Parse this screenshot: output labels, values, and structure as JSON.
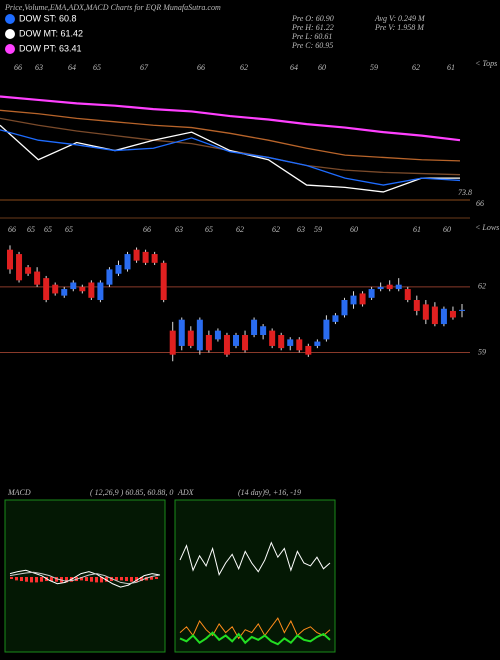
{
  "header": {
    "title": "Price,Volume,EMA,ADX,MACD Charts for EQR MunafaSutra.com"
  },
  "legend": [
    {
      "text": "DOW ST: 60.8",
      "color": "#1e6cff"
    },
    {
      "text": "DOW MT: 61.42",
      "color": "#ffffff"
    },
    {
      "text": "DOW PT: 63.41",
      "color": "#ff40ff"
    }
  ],
  "info": [
    "Pre  O: 60.90",
    "Pre  H: 61.22",
    "Pre  L: 60.61",
    "Pre  C: 60.95",
    "Avg  V: 0.249 M",
    "Pre  V: 1.958 M"
  ],
  "chart_data": [
    {
      "type": "line",
      "categories": [
        null,
        null,
        null,
        null,
        null,
        null,
        null,
        null,
        null,
        null,
        null,
        null,
        null
      ],
      "ylim": [
        58,
        70
      ],
      "tops_label": "< Tops",
      "top_labels": [
        "66",
        "63",
        "64",
        "65",
        "67",
        "66",
        "62",
        "64",
        "60",
        "59",
        "62",
        "61"
      ],
      "annotations": [
        "73.8",
        "66"
      ],
      "series": [
        {
          "color": "#ff40ff",
          "values": [
            67.0,
            66.7,
            66.4,
            66.2,
            65.9,
            65.7,
            65.3,
            65.0,
            64.6,
            64.3,
            63.9,
            63.6,
            63.2
          ]
        },
        {
          "color": "#b8642a",
          "values": [
            65.8,
            65.5,
            65.1,
            64.8,
            64.5,
            64.3,
            63.8,
            63.2,
            62.5,
            61.9,
            61.7,
            61.5,
            61.4
          ]
        },
        {
          "color": "#7a4a2a",
          "values": [
            65.1,
            64.5,
            64.0,
            63.6,
            63.2,
            62.9,
            62.3,
            61.7,
            61.0,
            60.6,
            60.4,
            60.3,
            60.2
          ]
        },
        {
          "color": "#ffffff",
          "values": [
            64.5,
            61.5,
            63.0,
            62.3,
            63.2,
            63.9,
            62.3,
            61.5,
            59.3,
            59.1,
            58.7,
            59.9,
            59.9
          ]
        },
        {
          "color": "#1e6cff",
          "values": [
            64.1,
            63.2,
            62.8,
            62.3,
            62.5,
            63.4,
            62.2,
            61.7,
            61.0,
            59.9,
            59.3,
            59.9,
            59.7
          ]
        }
      ]
    },
    {
      "type": "candlestick",
      "ylim": [
        58.2,
        64.6
      ],
      "yticks": [
        62,
        59
      ],
      "up_color": "#2a6cf0",
      "down_color": "#e02020",
      "lows_label": "< Lows",
      "low_labels": [
        "66",
        "65",
        "65",
        "65",
        "66",
        "63",
        "65",
        "62",
        "62",
        "63",
        "59",
        "60",
        "61",
        "60"
      ],
      "open": [
        63.7,
        63.5,
        62.9,
        62.7,
        62.4,
        62.1,
        61.6,
        61.9,
        62.0,
        62.2,
        61.4,
        62.1,
        62.6,
        62.8,
        63.7,
        63.6,
        63.5,
        63.1,
        60.0,
        59.3,
        60.0,
        59.1,
        59.8,
        59.6,
        59.8,
        59.3,
        59.8,
        59.8,
        59.8,
        60.0,
        59.8,
        59.3,
        59.6,
        59.3,
        59.3,
        59.6,
        60.4,
        60.7,
        61.2,
        61.7,
        61.5,
        61.9,
        62.1,
        61.9,
        61.9,
        61.4,
        61.2,
        61.1,
        60.3,
        60.9,
        60.9
      ],
      "high": [
        63.9,
        63.6,
        63.0,
        62.9,
        62.5,
        62.2,
        62.0,
        62.3,
        62.1,
        62.3,
        62.3,
        62.9,
        63.2,
        63.6,
        63.8,
        63.7,
        63.6,
        63.2,
        60.4,
        60.6,
        60.2,
        60.6,
        60.0,
        60.1,
        59.9,
        59.9,
        60.0,
        60.6,
        60.3,
        60.1,
        59.9,
        59.7,
        59.7,
        59.4,
        59.6,
        60.7,
        60.8,
        61.5,
        61.8,
        61.8,
        62.0,
        62.2,
        62.3,
        62.4,
        62.0,
        61.6,
        61.4,
        61.3,
        61.1,
        61.1,
        61.22
      ],
      "low": [
        62.6,
        62.2,
        62.5,
        62.0,
        61.3,
        61.6,
        61.5,
        61.8,
        61.7,
        61.4,
        61.3,
        62.0,
        62.5,
        62.7,
        63.1,
        63.0,
        63.0,
        61.3,
        58.6,
        59.1,
        59.2,
        58.9,
        59.0,
        59.5,
        58.8,
        59.2,
        59.0,
        59.7,
        59.6,
        59.2,
        59.1,
        59.1,
        59.0,
        58.8,
        59.2,
        59.5,
        60.3,
        60.6,
        61.0,
        61.1,
        61.4,
        61.8,
        61.8,
        61.8,
        61.3,
        60.7,
        60.3,
        60.2,
        60.2,
        60.5,
        60.61
      ],
      "close": [
        62.8,
        62.3,
        62.6,
        62.1,
        61.4,
        61.7,
        61.9,
        62.2,
        61.8,
        61.5,
        62.2,
        62.8,
        63.0,
        63.5,
        63.2,
        63.1,
        63.1,
        61.4,
        58.9,
        60.5,
        59.3,
        60.5,
        59.1,
        60.0,
        58.9,
        59.8,
        59.1,
        60.5,
        60.2,
        59.3,
        59.2,
        59.6,
        59.1,
        58.9,
        59.5,
        60.5,
        60.7,
        61.4,
        61.6,
        61.2,
        61.9,
        62.0,
        61.9,
        62.1,
        61.4,
        60.9,
        60.5,
        60.3,
        61.0,
        60.6,
        60.95
      ]
    },
    {
      "type": "macd",
      "title": "MACD",
      "subtitle": "( 12,26,9 ) 60.85, 60.88, 0",
      "ylim": [
        -1,
        1
      ],
      "series": [
        {
          "color": "#ffffff",
          "values": [
            0.05,
            0.08,
            0.1,
            0.06,
            0.02,
            -0.05,
            -0.1,
            -0.08,
            -0.02,
            0.05,
            0.08,
            0.04,
            -0.03,
            -0.1,
            -0.15,
            -0.12,
            -0.05,
            0.02,
            0.05,
            0.03
          ]
        },
        {
          "color": "#cccccc",
          "values": [
            0.02,
            0.04,
            0.06,
            0.07,
            0.05,
            0.02,
            -0.03,
            -0.06,
            -0.05,
            -0.01,
            0.03,
            0.05,
            0.02,
            -0.03,
            -0.08,
            -0.1,
            -0.08,
            -0.03,
            0.01,
            0.03
          ]
        }
      ],
      "histogram": {
        "color": "#ff3030",
        "values": [
          -0.03,
          -0.05,
          -0.06,
          -0.07,
          -0.08,
          -0.08,
          -0.07,
          -0.06,
          -0.06,
          -0.07,
          -0.08,
          -0.08,
          -0.07,
          -0.06,
          -0.05,
          -0.06,
          -0.07,
          -0.08,
          -0.08,
          -0.07,
          -0.06,
          -0.05,
          -0.05,
          -0.06,
          -0.07,
          -0.07,
          -0.06,
          -0.05,
          -0.04,
          -0.03
        ]
      }
    },
    {
      "type": "adx",
      "title": "ADX",
      "subtitle": "(14 day)9, +16, -19",
      "ylim": [
        0,
        100
      ],
      "series": [
        {
          "color": "#ffffff",
          "values": [
            62,
            72,
            55,
            65,
            58,
            70,
            52,
            60,
            66,
            56,
            68,
            60,
            54,
            62,
            74,
            64,
            70,
            55,
            68,
            60,
            58,
            64,
            56,
            60
          ]
        },
        {
          "color": "#ff8c1a",
          "values": [
            12,
            16,
            10,
            20,
            14,
            10,
            18,
            12,
            16,
            8,
            14,
            12,
            18,
            10,
            16,
            22,
            12,
            20,
            10,
            14,
            16,
            12,
            10,
            14
          ]
        },
        {
          "color": "#22dd22",
          "values": [
            8,
            6,
            10,
            5,
            8,
            12,
            7,
            10,
            6,
            11,
            5,
            9,
            7,
            10,
            6,
            4,
            8,
            5,
            10,
            7,
            6,
            9,
            11,
            7
          ]
        }
      ]
    }
  ]
}
